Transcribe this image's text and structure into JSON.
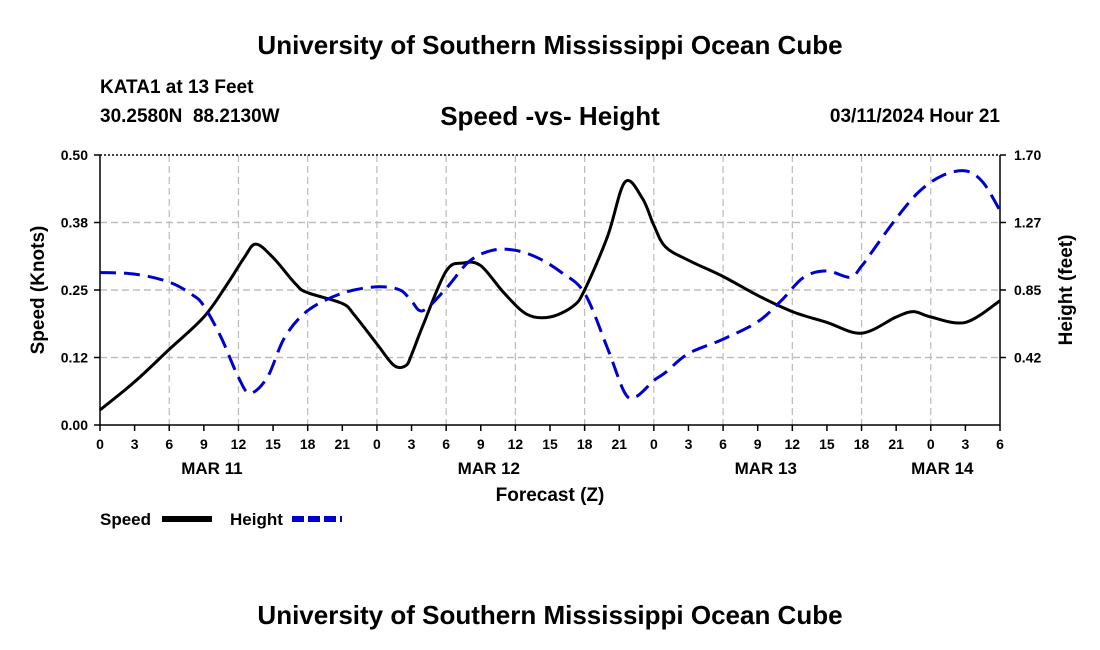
{
  "page": {
    "title_top": "University of Southern Mississippi Ocean Cube",
    "title_bottom": "University of Southern Mississippi Ocean Cube",
    "station_name": "KATA1 at 13 Feet",
    "station_coords": "30.2580N  88.2130W",
    "date_label": "03/11/2024 Hour 21"
  },
  "chart_data": {
    "type": "line",
    "title": "Speed -vs- Height",
    "xlabel": "Forecast (Z)",
    "ylabel": "Speed (Knots)",
    "y2label": "Height (feet)",
    "x_range": [
      0,
      78
    ],
    "ylim": [
      0,
      0.5
    ],
    "y2lim": [
      0,
      1.7
    ],
    "y_ticks": [
      "0.00",
      "0.12",
      "0.25",
      "0.38",
      "0.50"
    ],
    "y_tick_values": [
      0,
      0.125,
      0.25,
      0.375,
      0.5
    ],
    "y2_ticks": [
      "0.42",
      "0.85",
      "1.27",
      "1.70"
    ],
    "y2_tick_values": [
      0.425,
      0.85,
      1.275,
      1.7
    ],
    "x_ticks": [
      "0",
      "3",
      "6",
      "9",
      "12",
      "15",
      "18",
      "21",
      "0",
      "3",
      "6",
      "9",
      "12",
      "15",
      "18",
      "21",
      "0",
      "3",
      "6",
      "9",
      "12",
      "15",
      "18",
      "21",
      "0",
      "3",
      "6"
    ],
    "date_labels": [
      {
        "text": "MAR 11",
        "x": 9.7
      },
      {
        "text": "MAR 12",
        "x": 33.7
      },
      {
        "text": "MAR 13",
        "x": 57.7
      },
      {
        "text": "MAR 14",
        "x": 73
      }
    ],
    "grid": true,
    "legend": [
      {
        "name": "Speed",
        "color": "#000000",
        "dashed": false
      },
      {
        "name": "Height",
        "color": "#0000cc",
        "dashed": true
      }
    ],
    "series": [
      {
        "name": "Speed",
        "axis": "left",
        "color": "#000000",
        "x": [
          0,
          3,
          6,
          9,
          11,
          12.5,
          13.5,
          15,
          17,
          18,
          21,
          22,
          24,
          25.5,
          26.5,
          27,
          28,
          30,
          31.5,
          33,
          35,
          37,
          39,
          41,
          42,
          44,
          45.5,
          47,
          48,
          49,
          51,
          54,
          57,
          60,
          63,
          66,
          69,
          70.5,
          72,
          75,
          78
        ],
        "y": [
          0.028,
          0.08,
          0.14,
          0.2,
          0.26,
          0.31,
          0.335,
          0.31,
          0.26,
          0.245,
          0.225,
          0.205,
          0.15,
          0.11,
          0.11,
          0.13,
          0.185,
          0.285,
          0.3,
          0.295,
          0.245,
          0.205,
          0.2,
          0.22,
          0.25,
          0.35,
          0.45,
          0.42,
          0.37,
          0.33,
          0.305,
          0.275,
          0.24,
          0.21,
          0.19,
          0.17,
          0.2,
          0.21,
          0.2,
          0.19,
          0.23
        ]
      },
      {
        "name": "Height",
        "axis": "right",
        "color": "#0000cc",
        "x": [
          0,
          3,
          6,
          8,
          9,
          10.5,
          12,
          13,
          14.5,
          16,
          18,
          21,
          24,
          26,
          27,
          28,
          30,
          32,
          34,
          36,
          38,
          40,
          42,
          44,
          45.5,
          46.5,
          48,
          49,
          51,
          54,
          57,
          59,
          61,
          63,
          65,
          66,
          67,
          69,
          71,
          73,
          75,
          76.5,
          78
        ],
        "y": [
          0.96,
          0.95,
          0.9,
          0.82,
          0.75,
          0.55,
          0.3,
          0.2,
          0.3,
          0.55,
          0.72,
          0.83,
          0.87,
          0.85,
          0.78,
          0.72,
          0.86,
          1.03,
          1.1,
          1.1,
          1.05,
          0.96,
          0.83,
          0.48,
          0.2,
          0.18,
          0.28,
          0.33,
          0.45,
          0.54,
          0.65,
          0.78,
          0.93,
          0.97,
          0.93,
          1.0,
          1.1,
          1.3,
          1.47,
          1.57,
          1.6,
          1.53,
          1.35
        ]
      }
    ]
  }
}
